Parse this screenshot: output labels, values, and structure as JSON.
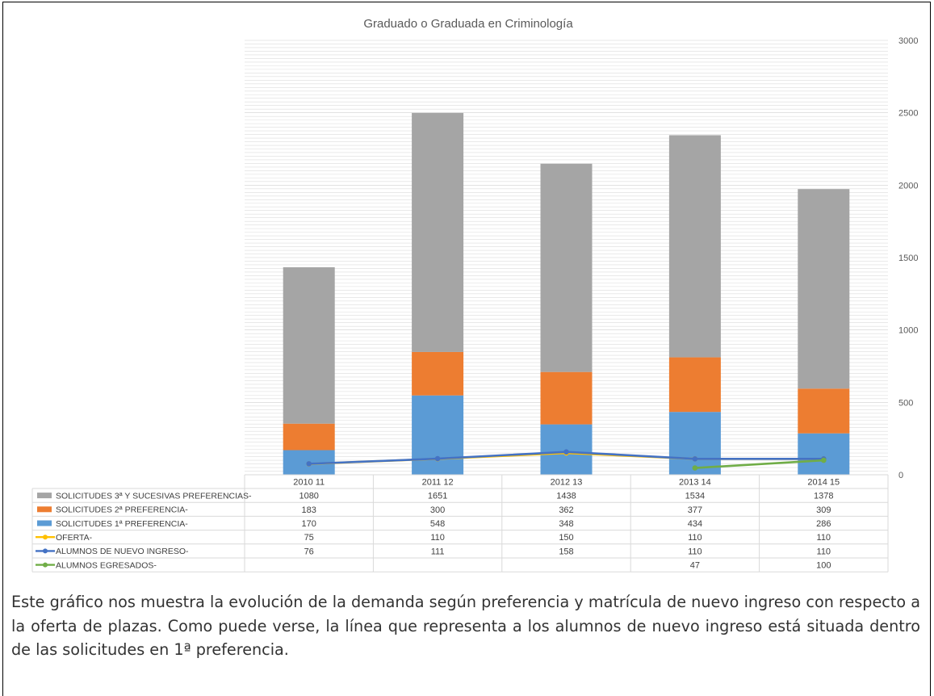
{
  "chart_data": {
    "type": "bar",
    "stacked": true,
    "title": "Graduado o Graduada en Criminología",
    "categories": [
      "2010 11",
      "2011 12",
      "2012 13",
      "2013 14",
      "2014 15"
    ],
    "ylim": [
      0,
      3000
    ],
    "yticks": [
      0,
      500,
      1000,
      1500,
      2000,
      2500,
      3000
    ],
    "yaxis_side": "right",
    "grid": true,
    "legend": "data-table",
    "series": [
      {
        "name": "SOLICITUDES 3ª Y SUCESIVAS PREFERENCIAS-",
        "kind": "bar",
        "color": "#a5a5a5",
        "values": [
          1080,
          1651,
          1438,
          1534,
          1378
        ]
      },
      {
        "name": "SOLICITUDES 2ª PREFERENCIA-",
        "kind": "bar",
        "color": "#ed7d31",
        "values": [
          183,
          300,
          362,
          377,
          309
        ]
      },
      {
        "name": "SOLICITUDES 1ª PREFERENCIA-",
        "kind": "bar",
        "color": "#5b9bd5",
        "values": [
          170,
          548,
          348,
          434,
          286
        ]
      },
      {
        "name": "OFERTA-",
        "kind": "line",
        "color": "#ffc000",
        "values": [
          75,
          110,
          150,
          110,
          110
        ]
      },
      {
        "name": "ALUMNOS DE NUEVO INGRESO-",
        "kind": "line",
        "color": "#4472c4",
        "values": [
          76,
          111,
          158,
          110,
          110
        ]
      },
      {
        "name": "ALUMNOS EGRESADOS-",
        "kind": "line",
        "color": "#70ad47",
        "values": [
          null,
          null,
          null,
          47,
          100
        ]
      }
    ]
  },
  "caption": "Este gráfico nos muestra la evolución de la demanda según preferencia y matrícula de nuevo ingreso con respecto a la oferta de plazas. Como puede verse, la línea que representa a los alumnos de nuevo ingreso está situada dentro de las solicitudes en 1ª preferencia."
}
